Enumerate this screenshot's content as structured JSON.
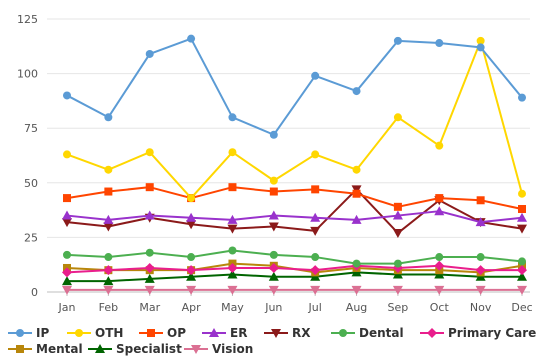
{
  "chart_data": {
    "type": "line",
    "title": "",
    "xlabel": "",
    "ylabel": "",
    "ylim": [
      0,
      125
    ],
    "yticks": [
      0,
      25,
      50,
      75,
      100,
      125
    ],
    "grid": true,
    "legend_position": "bottom",
    "categories": [
      "Jan",
      "Feb",
      "Mar",
      "Apr",
      "May",
      "Jun",
      "Jul",
      "Aug",
      "Sep",
      "Oct",
      "Nov",
      "Dec"
    ],
    "series": [
      {
        "name": "IP",
        "color": "#5b9bd5",
        "marker": "circle",
        "values": [
          90,
          80,
          109,
          116,
          80,
          72,
          99,
          92,
          115,
          114,
          112,
          89
        ]
      },
      {
        "name": "OTH",
        "color": "#ffd700",
        "marker": "circle",
        "values": [
          63,
          56,
          64,
          43,
          64,
          51,
          63,
          56,
          80,
          67,
          115,
          45
        ]
      },
      {
        "name": "OP",
        "color": "#ff4500",
        "marker": "square",
        "values": [
          43,
          46,
          48,
          43,
          48,
          46,
          47,
          45,
          39,
          43,
          42,
          38
        ]
      },
      {
        "name": "ER",
        "color": "#9932cc",
        "marker": "triangle-up",
        "values": [
          35,
          33,
          35,
          34,
          33,
          35,
          34,
          33,
          35,
          37,
          32,
          34
        ]
      },
      {
        "name": "RX",
        "color": "#8b1a1a",
        "marker": "triangle-down",
        "values": [
          32,
          30,
          34,
          31,
          29,
          30,
          28,
          47,
          27,
          42,
          32,
          29
        ]
      },
      {
        "name": "Dental",
        "color": "#4caf50",
        "marker": "circle",
        "values": [
          17,
          16,
          18,
          16,
          19,
          17,
          16,
          13,
          13,
          16,
          16,
          14
        ]
      },
      {
        "name": "Primary Care",
        "color": "#e91e8c",
        "marker": "diamond",
        "values": [
          9,
          10,
          11,
          10,
          11,
          11,
          10,
          12,
          11,
          12,
          10,
          10
        ]
      },
      {
        "name": "Mental",
        "color": "#b8860b",
        "marker": "square",
        "values": [
          11,
          10,
          10,
          10,
          13,
          12,
          9,
          11,
          10,
          10,
          9,
          12
        ]
      },
      {
        "name": "Specialist",
        "color": "#006400",
        "marker": "triangle-up",
        "values": [
          5,
          5,
          6,
          7,
          8,
          7,
          7,
          9,
          8,
          8,
          7,
          7
        ]
      },
      {
        "name": "Vision",
        "color": "#db7093",
        "marker": "triangle-down",
        "values": [
          1,
          1,
          1,
          1,
          1,
          1,
          1,
          1,
          1,
          1,
          1,
          1
        ]
      }
    ]
  }
}
